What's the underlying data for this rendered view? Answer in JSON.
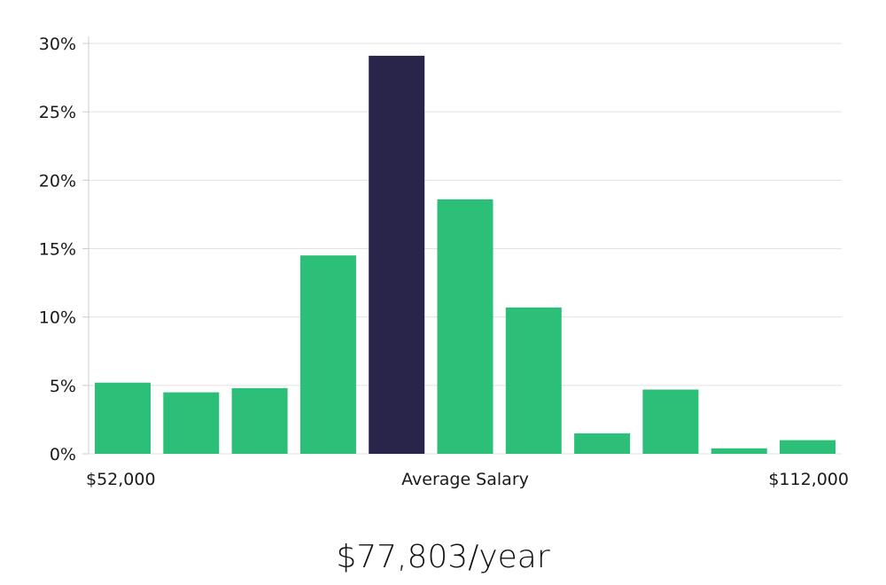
{
  "chart_data": {
    "type": "bar",
    "categories": [
      "1",
      "2",
      "3",
      "4",
      "5",
      "6",
      "7",
      "8",
      "9",
      "10",
      "11"
    ],
    "values": [
      5.2,
      4.5,
      4.8,
      14.5,
      29.1,
      18.6,
      10.7,
      1.5,
      4.7,
      0.4,
      1.0
    ],
    "highlight_index": 4,
    "ylim": [
      0,
      30
    ],
    "yticks": [
      0,
      5,
      10,
      15,
      20,
      25,
      30
    ],
    "ytick_labels": [
      "0%",
      "5%",
      "10%",
      "15%",
      "20%",
      "25%",
      "30%"
    ],
    "x_labels": {
      "left": "$52,000",
      "center": "Average Salary",
      "right": "$112,000"
    },
    "grid": true,
    "colors": {
      "bar": "#2bbf78",
      "highlight": "#28244a",
      "grid": "#e2e2e2",
      "axis": "#cccccc"
    }
  },
  "summary": {
    "salary_value": "$77,803/year"
  }
}
